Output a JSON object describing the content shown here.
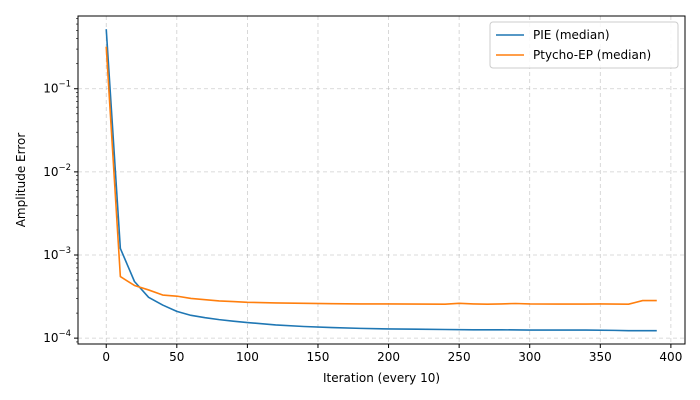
{
  "chart_data": {
    "type": "line",
    "title": "",
    "xlabel": "Iteration (every 10)",
    "ylabel": "Amplitude Error",
    "xlim": [
      -20,
      410
    ],
    "ylim": [
      8.5e-05,
      0.75
    ],
    "yscale": "log",
    "grid": true,
    "legend_position": "top-right",
    "x_ticks": [
      0,
      50,
      100,
      150,
      200,
      250,
      300,
      350,
      400
    ],
    "y_ticks": [
      {
        "value": 0.0001,
        "base": "10",
        "exp": "−4"
      },
      {
        "value": 0.001,
        "base": "10",
        "exp": "−3"
      },
      {
        "value": 0.01,
        "base": "10",
        "exp": "−2"
      },
      {
        "value": 0.1,
        "base": "10",
        "exp": "−1"
      }
    ],
    "series": [
      {
        "name": "PIE (median)",
        "color": "#1f77b4",
        "x": [
          0,
          10,
          20,
          30,
          40,
          50,
          60,
          70,
          80,
          90,
          100,
          120,
          140,
          160,
          180,
          200,
          220,
          240,
          260,
          280,
          300,
          320,
          340,
          360,
          370,
          380,
          390
        ],
        "y": [
          0.52,
          0.0012,
          0.00048,
          0.00031,
          0.00025,
          0.00021,
          0.000188,
          0.000176,
          0.000167,
          0.00016,
          0.000154,
          0.000144,
          0.000138,
          0.000134,
          0.000131,
          0.000129,
          0.000128,
          0.000127,
          0.000126,
          0.000126,
          0.000125,
          0.000125,
          0.000125,
          0.000124,
          0.000123,
          0.000123,
          0.000123
        ]
      },
      {
        "name": "Ptycho-EP (median)",
        "color": "#ff7f0e",
        "x": [
          0,
          10,
          20,
          30,
          40,
          50,
          60,
          70,
          80,
          90,
          100,
          120,
          140,
          160,
          180,
          200,
          220,
          240,
          250,
          260,
          270,
          280,
          290,
          300,
          320,
          340,
          350,
          360,
          370,
          380,
          390
        ],
        "y": [
          0.32,
          0.00055,
          0.00043,
          0.00038,
          0.00033,
          0.00032,
          0.0003,
          0.00029,
          0.00028,
          0.000275,
          0.00027,
          0.000265,
          0.000262,
          0.00026,
          0.000258,
          0.000258,
          0.000257,
          0.000256,
          0.000262,
          0.000258,
          0.000256,
          0.000258,
          0.000261,
          0.000258,
          0.000257,
          0.000257,
          0.000258,
          0.000257,
          0.000256,
          0.000283,
          0.000283
        ]
      }
    ]
  }
}
